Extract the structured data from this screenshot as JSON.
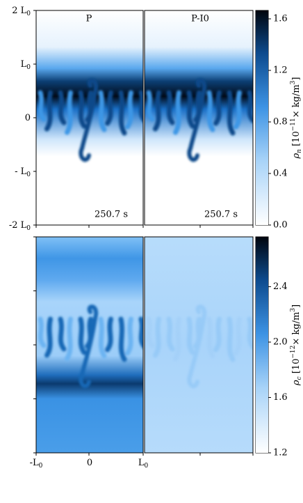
{
  "panels": {
    "top_left": {
      "label": "P",
      "time": "250.7 s"
    },
    "top_right": {
      "label": "P-I0",
      "time": "250.7 s"
    }
  },
  "y_axis": {
    "ticks": [
      {
        "text": "2 L",
        "sub": "0"
      },
      {
        "text": "L",
        "sub": "0"
      },
      {
        "text": "0",
        "sub": ""
      },
      {
        "text": "- L",
        "sub": "0"
      },
      {
        "text": "-2 L",
        "sub": "0"
      }
    ]
  },
  "x_axis": {
    "ticks": [
      {
        "text": "-L",
        "sub": "0"
      },
      {
        "text": "0",
        "sub": ""
      },
      {
        "text": "L",
        "sub": "0"
      }
    ]
  },
  "colorbar_top": {
    "lim": [
      0,
      1.665
    ],
    "ticks": [
      {
        "value": 0,
        "label": "0.0"
      },
      0.4,
      0.8,
      1.2,
      1.6
    ],
    "label": {
      "symbol": "ρ",
      "sub": "n",
      "pre": " [10",
      "exp": "−11",
      "mid": "× kg/m",
      "exp2": "3",
      "post": "]"
    }
  },
  "colorbar_bottom": {
    "lim": [
      1.2,
      2.76
    ],
    "ticks": [
      1.2,
      1.6,
      {
        "value": 2,
        "label": "2.0"
      },
      2.4
    ],
    "label": {
      "symbol": "ρ",
      "sub": "c",
      "pre": " [10",
      "exp": "−12",
      "mid": "× kg/m",
      "exp2": "3",
      "post": "]"
    }
  }
}
